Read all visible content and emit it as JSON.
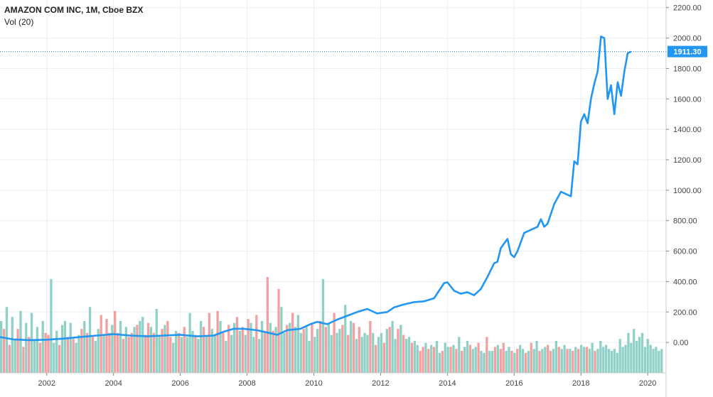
{
  "header": {
    "title": "AMAZON COM INC, 1M, Cboe BZX",
    "volume_label": "Vol (20)"
  },
  "colors": {
    "price_line": "#2196f3",
    "volume_up": "#8fd0c7",
    "volume_down": "#f4a0a0",
    "price_label_bg": "#2196f3",
    "price_label_text": "#ffffff"
  },
  "chart_data": {
    "type": "line",
    "price_axis": {
      "ylim": [
        -200,
        2250
      ],
      "ticks": [
        "2200.00",
        "2000.00",
        "1800.00",
        "1600.00",
        "1400.00",
        "1200.00",
        "1000.00",
        "800.00",
        "600.00",
        "400.00",
        "200.00",
        "0.00"
      ],
      "tick_values": [
        2200,
        2000,
        1800,
        1600,
        1400,
        1200,
        1000,
        800,
        600,
        400,
        200,
        0
      ]
    },
    "time_axis": {
      "xlim": [
        2000.6,
        2020.55
      ],
      "ticks": [
        "2002",
        "2004",
        "2006",
        "2008",
        "2010",
        "2012",
        "2014",
        "2016",
        "2018",
        "2020"
      ],
      "tick_values": [
        2002,
        2004,
        2006,
        2008,
        2010,
        2012,
        2014,
        2016,
        2018,
        2020
      ]
    },
    "grid": true,
    "last_price": {
      "value": 1911.3,
      "label": "1911.30"
    },
    "series": [
      {
        "name": "AMAZON COM INC",
        "x": [
          2000.6,
          2001.0,
          2001.5,
          2002.0,
          2002.5,
          2003.0,
          2003.5,
          2004.0,
          2004.5,
          2005.0,
          2005.5,
          2006.0,
          2006.5,
          2007.0,
          2007.3,
          2007.6,
          2007.9,
          2008.3,
          2008.6,
          2008.9,
          2009.2,
          2009.6,
          2009.9,
          2010.1,
          2010.4,
          2010.7,
          2011.0,
          2011.3,
          2011.6,
          2011.9,
          2012.2,
          2012.4,
          2012.7,
          2013.0,
          2013.3,
          2013.6,
          2013.9,
          2014.0,
          2014.2,
          2014.4,
          2014.6,
          2014.8,
          2015.0,
          2015.2,
          2015.4,
          2015.5,
          2015.6,
          2015.8,
          2015.9,
          2016.0,
          2016.1,
          2016.3,
          2016.5,
          2016.7,
          2016.8,
          2016.9,
          2017.0,
          2017.2,
          2017.4,
          2017.5,
          2017.7,
          2017.8,
          2017.9,
          2018.0,
          2018.1,
          2018.2,
          2018.3,
          2018.4,
          2018.5,
          2018.6,
          2018.7,
          2018.8,
          2018.9,
          2019.0,
          2019.1,
          2019.2,
          2019.3,
          2019.4,
          2019.5
        ],
        "values": [
          35,
          20,
          15,
          18,
          25,
          35,
          45,
          55,
          45,
          40,
          45,
          50,
          40,
          45,
          70,
          90,
          90,
          80,
          65,
          50,
          80,
          90,
          120,
          135,
          120,
          150,
          175,
          200,
          220,
          190,
          200,
          230,
          250,
          265,
          270,
          290,
          390,
          395,
          340,
          320,
          330,
          310,
          350,
          430,
          520,
          530,
          620,
          680,
          580,
          560,
          600,
          720,
          740,
          760,
          810,
          760,
          780,
          910,
          990,
          980,
          960,
          1190,
          1170,
          1450,
          1500,
          1440,
          1600,
          1700,
          1780,
          2010,
          2000,
          1600,
          1690,
          1500,
          1710,
          1620,
          1780,
          1900,
          1911.3
        ]
      }
    ],
    "volume": {
      "name": "Vol (20)",
      "direction": [
        "up",
        "down",
        "up",
        "down",
        "up",
        "up",
        "down",
        "up",
        "down",
        "up",
        "down",
        "up",
        "up",
        "up",
        "down",
        "up",
        "down",
        "down",
        "up",
        "up",
        "up",
        "down",
        "up",
        "up",
        "down",
        "up",
        "down",
        "up",
        "up",
        "down",
        "up",
        "down",
        "up",
        "down",
        "up",
        "up",
        "down",
        "up",
        "down",
        "down",
        "up",
        "down",
        "down",
        "up",
        "down",
        "up",
        "down",
        "down",
        "up",
        "down",
        "up",
        "up",
        "down",
        "down",
        "up",
        "down",
        "up",
        "up",
        "down",
        "up",
        "down",
        "down",
        "up",
        "up",
        "down",
        "up",
        "down",
        "up",
        "up",
        "up",
        "down",
        "up",
        "up",
        "down",
        "up",
        "down",
        "up",
        "up",
        "down",
        "up",
        "down",
        "up",
        "down",
        "up",
        "up",
        "down",
        "up",
        "down",
        "up",
        "down",
        "up",
        "up",
        "down",
        "up",
        "up",
        "down",
        "down",
        "up",
        "down",
        "up",
        "down",
        "up",
        "up",
        "down",
        "up",
        "down",
        "up",
        "up",
        "up",
        "down",
        "up",
        "up",
        "down",
        "up",
        "up",
        "down",
        "up",
        "down",
        "up",
        "up",
        "down",
        "up",
        "up",
        "down",
        "up",
        "down",
        "up",
        "down",
        "up",
        "down",
        "up",
        "up",
        "up",
        "down",
        "up",
        "down",
        "up",
        "up",
        "down",
        "up",
        "down",
        "up",
        "up",
        "down",
        "up",
        "down",
        "up",
        "up",
        "down",
        "up",
        "up",
        "down",
        "down",
        "up",
        "down",
        "up",
        "down",
        "up",
        "up",
        "down",
        "up",
        "up",
        "down",
        "up",
        "down",
        "up",
        "down",
        "up",
        "up",
        "down",
        "up",
        "up",
        "down",
        "up",
        "up",
        "down",
        "up",
        "up",
        "down",
        "up",
        "down",
        "down",
        "up",
        "up",
        "down",
        "up",
        "down",
        "up",
        "up",
        "down",
        "up",
        "down",
        "up",
        "up",
        "down",
        "up",
        "up",
        "down",
        "down",
        "up",
        "up",
        "down",
        "up",
        "up",
        "down",
        "up",
        "down",
        "up",
        "down",
        "up",
        "up",
        "down",
        "up",
        "up",
        "down"
      ],
      "values": [
        260,
        220,
        330,
        140,
        280,
        170,
        220,
        310,
        130,
        250,
        180,
        300,
        160,
        230,
        150,
        260,
        200,
        190,
        470,
        150,
        210,
        140,
        240,
        260,
        180,
        250,
        170,
        150,
        190,
        220,
        260,
        200,
        330,
        180,
        160,
        220,
        290,
        190,
        270,
        200,
        240,
        310,
        200,
        260,
        170,
        230,
        180,
        200,
        230,
        240,
        260,
        280,
        190,
        250,
        230,
        200,
        320,
        190,
        220,
        240,
        260,
        180,
        150,
        210,
        200,
        180,
        230,
        180,
        300,
        210,
        190,
        170,
        260,
        230,
        190,
        300,
        220,
        190,
        310,
        260,
        200,
        160,
        240,
        190,
        250,
        280,
        210,
        230,
        190,
        270,
        250,
        180,
        290,
        170,
        260,
        200,
        480,
        250,
        210,
        230,
        420,
        330,
        200,
        240,
        250,
        300,
        230,
        290,
        200,
        220,
        230,
        160,
        250,
        180,
        220,
        260,
        470,
        230,
        250,
        190,
        300,
        200,
        220,
        240,
        340,
        190,
        260,
        250,
        170,
        230,
        180,
        200,
        190,
        260,
        200,
        140,
        180,
        200,
        150,
        220,
        230,
        260,
        170,
        220,
        240,
        190,
        170,
        180,
        150,
        160,
        140,
        110,
        130,
        150,
        120,
        140,
        130,
        160,
        100,
        110,
        150,
        130,
        130,
        140,
        120,
        180,
        110,
        130,
        160,
        140,
        120,
        130,
        150,
        110,
        100,
        180,
        110,
        110,
        130,
        140,
        120,
        150,
        110,
        130,
        110,
        100,
        120,
        140,
        120,
        100,
        110,
        150,
        120,
        160,
        110,
        120,
        130,
        140,
        110,
        120,
        160,
        130,
        120,
        140,
        120,
        120,
        110,
        130,
        120,
        140,
        130,
        130,
        120,
        150,
        110,
        120,
        160,
        130,
        140,
        120,
        110,
        120,
        100,
        170,
        130,
        140,
        200,
        150,
        220,
        160,
        180,
        200,
        130,
        170,
        140,
        120,
        130,
        110,
        120
      ]
    }
  }
}
